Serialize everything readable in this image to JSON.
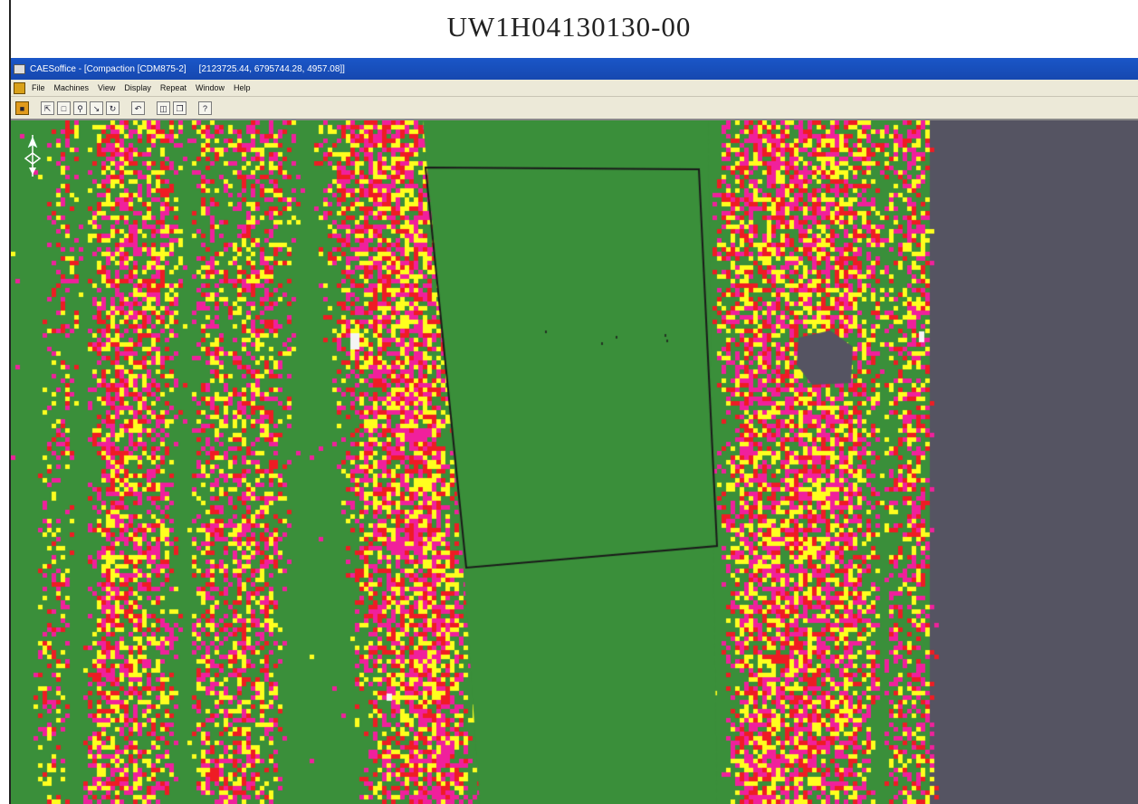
{
  "document": {
    "title": "UW1H04130130-00"
  },
  "window": {
    "title": "CAESoffice - [Compaction  [CDM875-2]",
    "coordinates": "[2123725.44, 6795744.28, 4957.08]]"
  },
  "menu": {
    "items": [
      "File",
      "Machines",
      "View",
      "Display",
      "Repeat",
      "Window",
      "Help"
    ]
  },
  "toolbar": {
    "icons": [
      "document-icon",
      "zoom-to-fit-icon",
      "zoom-window-icon",
      "zoom-icon",
      "pan-icon",
      "refresh-icon",
      "undo-icon",
      "layout-icon",
      "copy-icon",
      "help-pointer-icon"
    ]
  },
  "map": {
    "view": "compaction-pass-map",
    "colors": {
      "background": "#3a8f3a",
      "pass_low": "#ffff1e",
      "pass_mid": "#f0209c",
      "pass_high": "#ee1c24",
      "no_data": "#555462",
      "boundary": "#1a1a1a",
      "white_patch": "#f4f4f4"
    }
  }
}
